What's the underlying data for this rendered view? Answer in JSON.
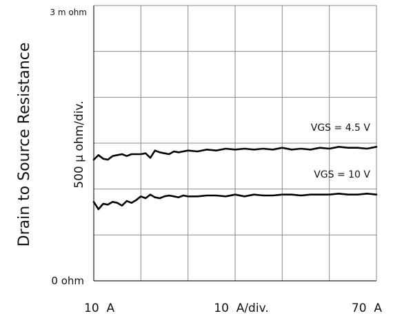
{
  "chart_data": {
    "type": "line",
    "ylabel": "Drain to Source Resistance",
    "ylabel_scale": "500 µ ohm/div.",
    "y_top_label": "3 m ohm",
    "y_bottom_label": "0  ohm",
    "x_tick_labels": [
      "10  A",
      "10  A/div.",
      "70  A"
    ],
    "x_range": [
      10,
      70
    ],
    "y_range_mohm": [
      0,
      3.0
    ],
    "grid": "on",
    "series": [
      {
        "name": "VGS = 4.5 V",
        "x": [
          10,
          11,
          12,
          13,
          14,
          15,
          16,
          17,
          18,
          19,
          20,
          21,
          22,
          23,
          24,
          25,
          26,
          27,
          28,
          29,
          30,
          32,
          34,
          36,
          38,
          40,
          42,
          44,
          46,
          48,
          50,
          52,
          54,
          56,
          58,
          60,
          62,
          64,
          66,
          68,
          70
        ],
        "values": [
          1.32,
          1.37,
          1.33,
          1.32,
          1.36,
          1.37,
          1.38,
          1.36,
          1.38,
          1.38,
          1.38,
          1.39,
          1.34,
          1.42,
          1.4,
          1.39,
          1.38,
          1.41,
          1.4,
          1.41,
          1.42,
          1.41,
          1.43,
          1.42,
          1.44,
          1.43,
          1.44,
          1.43,
          1.44,
          1.43,
          1.45,
          1.43,
          1.44,
          1.43,
          1.45,
          1.44,
          1.46,
          1.45,
          1.45,
          1.44,
          1.46
        ]
      },
      {
        "name": "VGS = 10 V",
        "x": [
          10,
          11,
          12,
          13,
          14,
          15,
          16,
          17,
          18,
          19,
          20,
          21,
          22,
          23,
          24,
          25,
          26,
          27,
          28,
          29,
          30,
          32,
          34,
          36,
          38,
          40,
          42,
          44,
          46,
          48,
          50,
          52,
          54,
          56,
          58,
          60,
          62,
          64,
          66,
          68,
          70
        ],
        "values": [
          0.86,
          0.78,
          0.84,
          0.83,
          0.86,
          0.85,
          0.82,
          0.87,
          0.85,
          0.88,
          0.92,
          0.9,
          0.94,
          0.91,
          0.9,
          0.92,
          0.93,
          0.92,
          0.91,
          0.93,
          0.92,
          0.92,
          0.93,
          0.93,
          0.92,
          0.94,
          0.92,
          0.94,
          0.93,
          0.93,
          0.94,
          0.94,
          0.93,
          0.94,
          0.94,
          0.94,
          0.95,
          0.94,
          0.94,
          0.95,
          0.94
        ]
      }
    ]
  }
}
